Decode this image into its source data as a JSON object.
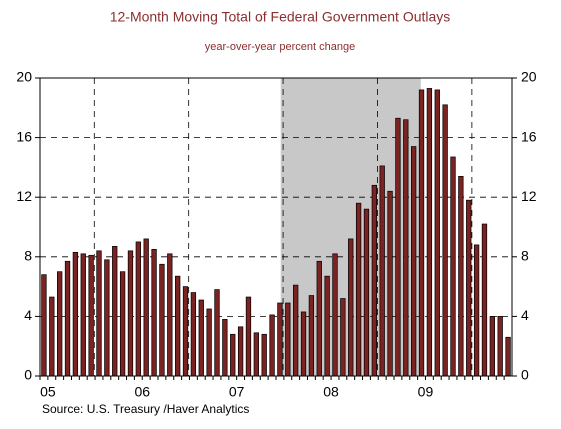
{
  "chart_data": {
    "type": "bar",
    "title": "12-Month Moving Total of Federal Government Outlays",
    "subtitle": "year-over-year percent change",
    "source": "Source:  U.S. Treasury /Haver Analytics",
    "categories": [
      null,
      "05",
      null,
      null,
      null,
      null,
      null,
      null,
      null,
      null,
      null,
      null,
      null,
      "06",
      null,
      null,
      null,
      null,
      null,
      null,
      null,
      null,
      null,
      null,
      null,
      "07",
      null,
      null,
      null,
      null,
      null,
      null,
      null,
      null,
      null,
      null,
      null,
      "08",
      null,
      null,
      null,
      null,
      null,
      null,
      null,
      null,
      null,
      null,
      null,
      "09",
      null,
      null,
      null,
      null,
      null,
      null,
      null,
      null,
      null,
      null
    ],
    "values": [
      6.8,
      5.3,
      7.0,
      7.7,
      8.3,
      8.2,
      8.1,
      8.4,
      7.8,
      8.7,
      7.0,
      8.4,
      9.0,
      9.2,
      8.5,
      7.5,
      8.2,
      6.7,
      6.0,
      5.6,
      5.1,
      4.5,
      5.8,
      3.8,
      2.8,
      3.3,
      5.3,
      2.9,
      2.8,
      4.1,
      4.9,
      4.9,
      6.1,
      4.3,
      5.4,
      7.7,
      6.7,
      8.2,
      5.2,
      9.2,
      11.6,
      11.2,
      12.8,
      14.1,
      12.4,
      17.3,
      17.2,
      15.4,
      19.2,
      19.3,
      19.2,
      18.2,
      14.7,
      13.4,
      11.8,
      8.8,
      10.2,
      4.0,
      4.0,
      2.6
    ],
    "color": "#7b2222",
    "ylim": [
      0,
      20
    ],
    "yticks": [
      0,
      4,
      8,
      12,
      16,
      20
    ],
    "y2lim": [
      0,
      20
    ],
    "y2ticks": [
      0,
      4,
      8,
      12,
      16,
      20
    ],
    "year_lines": [
      6.9,
      18.9,
      30.9,
      42.9,
      54.9
    ],
    "shaded_region": [
      30.6,
      48.4
    ],
    "grid": true
  }
}
